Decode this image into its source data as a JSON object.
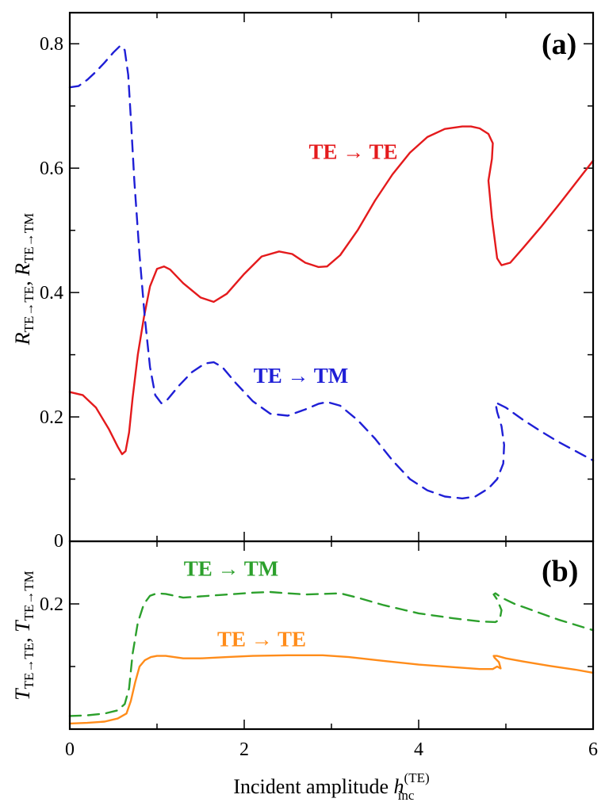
{
  "chart_data": [
    {
      "type": "line",
      "panel": "(a)",
      "xlabel_main": "Incident amplitude ",
      "xlabel_var": "h",
      "xlabel_sub": "inc",
      "xlabel_sup": "(TE)",
      "ylabel_r1": "R",
      "ylabel_sub1": "TE→TE",
      "ylabel_sep": ", ",
      "ylabel_r2": "R",
      "ylabel_sub2": "TE→TM",
      "xlim": [
        0,
        6
      ],
      "ylim": [
        0,
        0.85
      ],
      "xticks": [
        "0",
        "2",
        "4",
        "6"
      ],
      "yticks": [
        "0",
        "0.2",
        "0.4",
        "0.6",
        "0.8"
      ],
      "ytick_values": [
        0,
        0.2,
        0.4,
        0.6,
        0.8
      ],
      "series": [
        {
          "name": "TE → TE",
          "color": "#e41a1c",
          "dash": "solid",
          "x": [
            0,
            0.15,
            0.3,
            0.45,
            0.55,
            0.6,
            0.64,
            0.68,
            0.72,
            0.78,
            0.85,
            0.92,
            1.0,
            1.08,
            1.15,
            1.3,
            1.5,
            1.65,
            1.8,
            2.0,
            2.2,
            2.4,
            2.55,
            2.7,
            2.85,
            2.95,
            3.1,
            3.3,
            3.5,
            3.7,
            3.9,
            4.1,
            4.3,
            4.5,
            4.6,
            4.7,
            4.8,
            4.85,
            4.84,
            4.8,
            4.84,
            4.9,
            4.95,
            5.05,
            5.2,
            5.4,
            5.6,
            5.8,
            6.0
          ],
          "y": [
            0.24,
            0.235,
            0.215,
            0.18,
            0.152,
            0.14,
            0.145,
            0.175,
            0.23,
            0.3,
            0.36,
            0.41,
            0.438,
            0.442,
            0.437,
            0.415,
            0.392,
            0.385,
            0.398,
            0.43,
            0.458,
            0.466,
            0.462,
            0.448,
            0.441,
            0.442,
            0.46,
            0.5,
            0.548,
            0.59,
            0.625,
            0.65,
            0.663,
            0.667,
            0.667,
            0.664,
            0.655,
            0.64,
            0.615,
            0.58,
            0.52,
            0.455,
            0.444,
            0.448,
            0.472,
            0.505,
            0.54,
            0.576,
            0.612
          ]
        },
        {
          "name": "TE → TM",
          "color": "#1f1fd6",
          "dash": "dashed",
          "x": [
            0,
            0.1,
            0.2,
            0.3,
            0.4,
            0.5,
            0.58,
            0.63,
            0.67,
            0.7,
            0.74,
            0.8,
            0.86,
            0.92,
            0.98,
            1.05,
            1.12,
            1.25,
            1.4,
            1.55,
            1.65,
            1.75,
            1.9,
            2.1,
            2.3,
            2.5,
            2.7,
            2.85,
            2.95,
            3.1,
            3.3,
            3.5,
            3.7,
            3.9,
            4.1,
            4.3,
            4.5,
            4.65,
            4.8,
            4.9,
            4.97,
            4.98,
            4.95,
            4.9,
            4.88,
            4.9,
            5.0,
            5.2,
            5.4,
            5.6,
            5.8,
            6.0
          ],
          "y": [
            0.73,
            0.732,
            0.742,
            0.755,
            0.77,
            0.786,
            0.797,
            0.79,
            0.75,
            0.68,
            0.58,
            0.46,
            0.36,
            0.28,
            0.235,
            0.222,
            0.228,
            0.25,
            0.272,
            0.286,
            0.288,
            0.28,
            0.255,
            0.225,
            0.205,
            0.202,
            0.212,
            0.221,
            0.224,
            0.218,
            0.195,
            0.165,
            0.13,
            0.1,
            0.082,
            0.072,
            0.069,
            0.072,
            0.085,
            0.1,
            0.125,
            0.155,
            0.185,
            0.208,
            0.223,
            0.222,
            0.215,
            0.195,
            0.177,
            0.16,
            0.145,
            0.13
          ]
        }
      ],
      "annotations": [
        {
          "text": "TE → TE",
          "x": 3.25,
          "y": 0.615,
          "color": "#e41a1c"
        },
        {
          "text": "TE → TM",
          "x": 2.65,
          "y": 0.255,
          "color": "#1f1fd6"
        }
      ]
    },
    {
      "type": "line",
      "panel": "(b)",
      "ylabel_r1": "T",
      "ylabel_sub1": "TE→TE",
      "ylabel_sep": ",  ",
      "ylabel_r2": "T",
      "ylabel_sub2": "TE→TM",
      "xlim": [
        0,
        6
      ],
      "ylim": [
        0,
        0.3
      ],
      "yticks": [
        "0.2"
      ],
      "ytick_values": [
        0.2
      ],
      "series": [
        {
          "name": "TE → TM",
          "color": "#2ca02c",
          "dash": "dashed",
          "x": [
            0,
            0.2,
            0.4,
            0.55,
            0.63,
            0.68,
            0.72,
            0.78,
            0.85,
            0.92,
            1.0,
            1.1,
            1.3,
            1.5,
            1.7,
            1.9,
            2.1,
            2.3,
            2.5,
            2.7,
            2.9,
            3.1,
            3.3,
            3.6,
            4.0,
            4.4,
            4.7,
            4.88,
            4.93,
            4.95,
            4.9,
            4.86,
            4.88,
            4.95,
            5.1,
            5.3,
            5.6,
            6.0
          ],
          "y": [
            0.021,
            0.022,
            0.025,
            0.03,
            0.04,
            0.065,
            0.12,
            0.17,
            0.2,
            0.213,
            0.217,
            0.216,
            0.21,
            0.212,
            0.214,
            0.216,
            0.218,
            0.219,
            0.217,
            0.215,
            0.216,
            0.217,
            0.21,
            0.198,
            0.185,
            0.177,
            0.172,
            0.171,
            0.175,
            0.19,
            0.207,
            0.215,
            0.217,
            0.21,
            0.2,
            0.19,
            0.175,
            0.158
          ]
        },
        {
          "name": "TE → TE",
          "color": "#ff8c1a",
          "dash": "solid",
          "x": [
            0,
            0.2,
            0.4,
            0.55,
            0.65,
            0.7,
            0.75,
            0.8,
            0.86,
            0.93,
            1.0,
            1.1,
            1.3,
            1.5,
            1.8,
            2.1,
            2.5,
            2.9,
            3.2,
            3.6,
            4.0,
            4.4,
            4.7,
            4.85,
            4.9,
            4.94,
            4.92,
            4.87,
            4.86,
            4.9,
            5.0,
            5.2,
            5.5,
            5.8,
            6.0
          ],
          "y": [
            0.009,
            0.01,
            0.012,
            0.017,
            0.025,
            0.045,
            0.075,
            0.1,
            0.11,
            0.115,
            0.117,
            0.117,
            0.113,
            0.113,
            0.115,
            0.117,
            0.118,
            0.118,
            0.115,
            0.109,
            0.103,
            0.099,
            0.096,
            0.096,
            0.1,
            0.097,
            0.107,
            0.114,
            0.117,
            0.117,
            0.113,
            0.108,
            0.101,
            0.095,
            0.09
          ]
        }
      ],
      "annotations": [
        {
          "text": "TE → TM",
          "x": 1.85,
          "y": 0.245,
          "color": "#2ca02c"
        },
        {
          "text": "TE → TE",
          "x": 2.2,
          "y": 0.132,
          "color": "#ff8c1a"
        }
      ]
    }
  ]
}
